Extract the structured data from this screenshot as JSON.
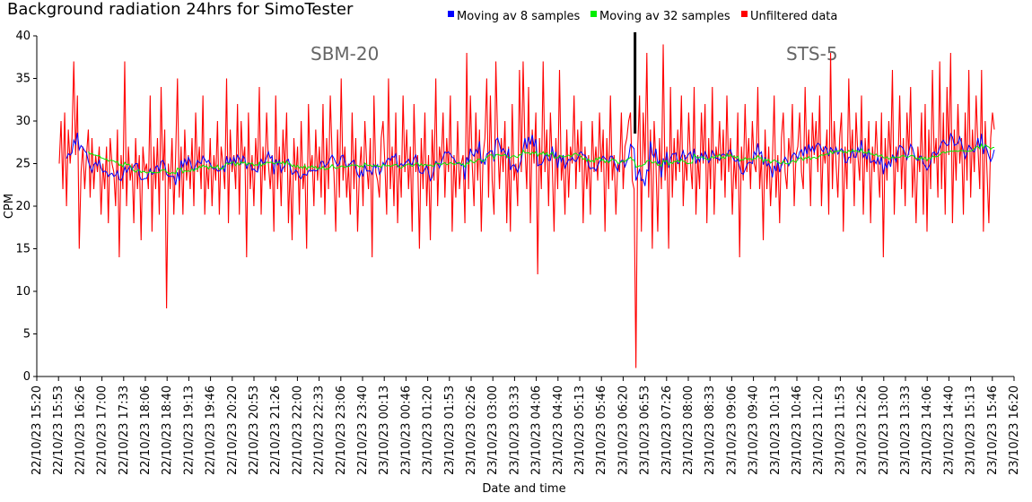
{
  "chart_data": {
    "type": "line",
    "title": "Background radiation 24hrs for SimoTester",
    "xlabel": "Date and time",
    "ylabel": "CPM",
    "ylim": [
      0,
      40
    ],
    "yticks": [
      0,
      5,
      10,
      15,
      20,
      25,
      30,
      35,
      40
    ],
    "xticks": [
      "22/10/23 15:20",
      "22/10/23 15:53",
      "22/10/23 16:26",
      "22/10/23 17:00",
      "22/10/23 17:33",
      "22/10/23 18:06",
      "22/10/23 18:40",
      "22/10/23 19:13",
      "22/10/23 19:46",
      "22/10/23 20:20",
      "22/10/23 20:53",
      "22/10/23 21:26",
      "22/10/23 22:00",
      "22/10/23 22:33",
      "22/10/23 23:06",
      "22/10/23 23:40",
      "23/10/23 00:13",
      "23/10/23 00:46",
      "23/10/23 01:20",
      "23/10/23 01:53",
      "23/10/23 02:26",
      "23/10/23 03:00",
      "23/10/23 03:33",
      "23/10/23 04:06",
      "23/10/23 04:40",
      "23/10/23 05:13",
      "23/10/23 05:46",
      "23/10/23 06:20",
      "23/10/23 06:53",
      "23/10/23 07:26",
      "23/10/23 08:00",
      "23/10/23 08:33",
      "23/10/23 09:06",
      "23/10/23 09:40",
      "23/10/23 10:13",
      "23/10/23 10:46",
      "23/10/23 11:20",
      "23/10/23 11:53",
      "23/10/23 12:26",
      "23/10/23 13:00",
      "23/10/23 13:33",
      "23/10/23 14:06",
      "23/10/23 14:40",
      "23/10/23 15:13",
      "23/10/23 15:46",
      "23/10/23 16:20"
    ],
    "legend_position": "top",
    "series": [
      {
        "name": "Moving av 8 samples",
        "color": "#0000ff"
      },
      {
        "name": "Moving av 32 samples",
        "color": "#00ee00"
      },
      {
        "name": "Unfiltered data",
        "color": "#ff0000",
        "values": [
          25,
          30,
          22,
          31,
          20,
          29,
          25,
          28,
          37,
          26,
          33,
          15,
          24,
          27,
          22,
          26,
          29,
          21,
          28,
          22,
          26,
          24,
          27,
          19,
          25,
          22,
          27,
          18,
          28,
          25,
          24,
          20,
          29,
          14,
          26,
          22,
          37,
          20,
          27,
          23,
          25,
          18,
          28,
          22,
          26,
          16,
          27,
          24,
          25,
          22,
          33,
          17,
          27,
          22,
          28,
          19,
          34,
          23,
          29,
          8,
          25,
          22,
          28,
          19,
          26,
          35,
          21,
          27,
          19,
          29,
          23,
          26,
          22,
          28,
          20,
          31,
          24,
          27,
          22,
          33,
          19,
          25,
          22,
          28,
          20,
          26,
          23,
          30,
          19,
          27,
          25,
          22,
          35,
          18,
          29,
          24,
          26,
          22,
          32,
          19,
          30,
          25,
          27,
          14,
          31,
          22,
          26,
          20,
          28,
          24,
          34,
          19,
          27,
          23,
          31,
          25,
          22,
          26,
          17,
          33,
          22,
          27,
          20,
          29,
          24,
          31,
          18,
          25,
          16,
          28,
          23,
          27,
          19,
          30,
          22,
          25,
          15,
          32,
          24,
          26,
          20,
          29,
          23,
          27,
          21,
          32,
          19,
          28,
          22,
          33,
          26,
          24,
          17,
          29,
          21,
          35,
          23,
          27,
          21,
          25,
          19,
          31,
          22,
          28,
          17,
          24,
          27,
          20,
          30,
          25,
          22,
          28,
          14,
          33,
          24,
          23,
          21,
          28,
          30,
          25,
          19,
          35,
          22,
          27,
          20,
          31,
          18,
          26,
          21,
          33,
          24,
          29,
          22,
          27,
          17,
          32,
          24,
          26,
          15,
          28,
          22,
          31,
          20,
          26,
          16,
          29,
          23,
          35,
          20,
          27,
          25,
          31,
          21,
          28,
          24,
          33,
          17,
          26,
          21,
          30,
          22,
          25,
          26,
          18,
          38,
          22,
          33,
          25,
          20,
          31,
          23,
          29,
          17,
          26,
          28,
          35,
          21,
          33,
          23,
          19,
          37,
          28,
          22,
          28,
          24,
          30,
          18,
          27,
          17,
          32,
          23,
          25,
          20,
          36,
          24,
          37,
          27,
          22,
          34,
          18,
          29,
          25,
          31,
          12,
          28,
          22,
          37,
          24,
          29,
          20,
          31,
          25,
          17,
          28,
          22,
          36,
          23,
          26,
          19,
          29,
          21,
          27,
          25,
          33,
          22,
          29,
          24,
          30,
          18,
          27,
          22,
          26,
          19,
          30,
          24,
          27,
          23,
          31,
          24,
          29,
          17,
          28,
          22,
          33,
          23,
          26,
          19,
          25,
          24,
          31,
          22,
          27,
          28,
          30,
          31,
          23,
          22,
          1,
          27,
          33,
          17,
          31,
          25,
          38,
          21,
          29,
          15,
          30,
          25,
          17,
          28,
          22,
          39,
          23,
          27,
          15,
          34,
          21,
          28,
          23,
          29,
          24,
          33,
          20,
          26,
          23,
          31,
          25,
          22,
          34,
          19,
          26,
          22,
          31,
          25,
          32,
          18,
          28,
          22,
          34,
          19,
          27,
          25,
          30,
          23,
          29,
          21,
          33,
          24,
          28,
          19,
          26,
          22,
          31,
          14,
          27,
          23,
          32,
          24,
          28,
          22,
          30,
          25,
          24,
          34,
          22,
          26,
          16,
          29,
          22,
          27,
          20,
          25,
          33,
          21,
          26,
          18,
          28,
          31,
          24,
          22,
          28,
          25,
          32,
          20,
          26,
          27,
          31,
          24,
          22,
          34,
          25,
          29,
          20,
          31,
          26,
          30,
          24,
          33,
          20,
          27,
          25,
          29,
          19,
          38,
          22,
          30,
          25,
          21,
          28,
          31,
          17,
          27,
          22,
          35,
          25,
          29,
          20,
          31,
          26,
          23,
          33,
          19,
          28,
          24,
          30,
          18,
          27,
          24,
          30,
          25,
          21,
          31,
          14,
          28,
          23,
          30,
          25,
          36,
          19,
          27,
          24,
          33,
          22,
          28,
          20,
          31,
          26,
          34,
          21,
          26,
          18,
          27,
          24,
          31,
          19,
          32,
          17,
          29,
          22,
          36,
          25,
          28,
          21,
          37,
          22,
          31,
          19,
          34,
          26,
          38,
          18,
          29,
          23,
          32,
          25,
          28,
          19,
          31,
          23,
          36,
          21,
          29,
          24,
          33,
          27,
          22,
          36,
          17,
          30,
          24,
          18,
          28,
          31,
          29
        ]
      }
    ],
    "annotations": [
      {
        "text": "SBM-20"
      },
      {
        "text": "STS-5"
      }
    ],
    "marker_index": 317
  }
}
